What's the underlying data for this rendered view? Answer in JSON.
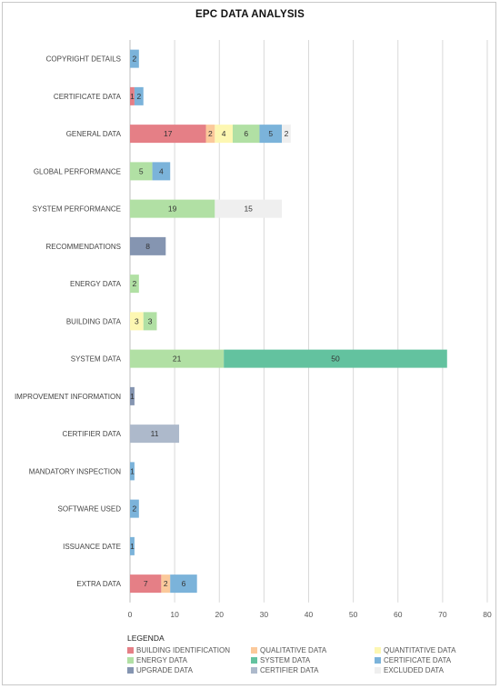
{
  "chart_data": {
    "type": "bar",
    "orientation": "horizontal",
    "stacked": true,
    "title": "EPC DATA ANALYSIS",
    "categories": [
      "COPYRIGHT DETAILS",
      "CERTIFICATE DATA",
      "GENERAL DATA",
      "GLOBAL PERFORMANCE",
      "SYSTEM PERFORMANCE",
      "RECOMMENDATIONS",
      "ENERGY DATA",
      "BUILDING DATA",
      "SYSTEM DATA",
      "IMPROVEMENT INFORMATION",
      "CERTIFIER DATA",
      "MANDATORY INSPECTION",
      "SOFTWARE USED",
      "ISSUANCE DATE",
      "EXTRA DATA"
    ],
    "series": [
      {
        "name": "BUILDING IDENTIFICATION",
        "color": "#e57f86",
        "values": [
          0,
          1,
          17,
          0,
          0,
          0,
          0,
          0,
          0,
          0,
          0,
          0,
          0,
          0,
          7
        ]
      },
      {
        "name": "QUALITATIVE DATA",
        "color": "#fbc99b",
        "values": [
          0,
          0,
          2,
          0,
          0,
          0,
          0,
          0,
          0,
          0,
          0,
          0,
          0,
          0,
          2
        ]
      },
      {
        "name": "QUANTITATIVE DATA",
        "color": "#fdf7b2",
        "values": [
          0,
          0,
          4,
          0,
          0,
          0,
          0,
          3,
          0,
          0,
          0,
          0,
          0,
          0,
          0
        ]
      },
      {
        "name": "ENERGY DATA",
        "color": "#b1e0a4",
        "values": [
          0,
          0,
          6,
          5,
          19,
          0,
          2,
          3,
          21,
          0,
          0,
          0,
          0,
          0,
          0
        ]
      },
      {
        "name": "SYSTEM DATA",
        "color": "#63c29f",
        "values": [
          0,
          0,
          0,
          0,
          0,
          0,
          0,
          0,
          50,
          0,
          0,
          0,
          0,
          0,
          0
        ]
      },
      {
        "name": "CERTIFICATE DATA",
        "color": "#7bb3da",
        "values": [
          2,
          2,
          5,
          4,
          0,
          0,
          0,
          0,
          0,
          0,
          0,
          1,
          2,
          1,
          6
        ]
      },
      {
        "name": "UPGRADE DATA",
        "color": "#8595b1",
        "values": [
          0,
          0,
          0,
          0,
          0,
          8,
          0,
          0,
          0,
          1,
          0,
          0,
          0,
          0,
          0
        ]
      },
      {
        "name": "CERTIFIER DATA",
        "color": "#adb9cb",
        "values": [
          0,
          0,
          0,
          0,
          0,
          0,
          0,
          0,
          0,
          0,
          11,
          0,
          0,
          0,
          0
        ]
      },
      {
        "name": "EXCLUDED DATA",
        "color": "#efefef",
        "values": [
          0,
          0,
          2,
          0,
          15,
          0,
          0,
          0,
          0,
          0,
          0,
          0,
          0,
          0,
          0
        ]
      }
    ],
    "xlim": [
      0,
      80
    ],
    "xticks": [
      0,
      10,
      20,
      30,
      40,
      50,
      60,
      70,
      80
    ],
    "grid": true,
    "legend_title": "LEGENDA",
    "legend_position": "bottom"
  }
}
